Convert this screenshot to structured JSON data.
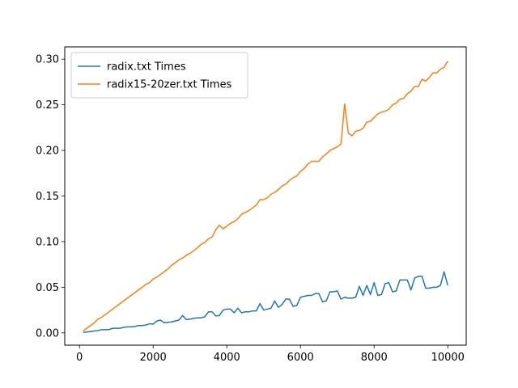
{
  "chart_data": {
    "type": "line",
    "title": "",
    "xlabel": "",
    "ylabel": "",
    "xlim": [
      -400,
      10500
    ],
    "ylim": [
      -0.0135,
      0.3135
    ],
    "xticks": [
      0,
      2000,
      4000,
      6000,
      8000,
      10000
    ],
    "xtick_labels": [
      "0",
      "2000",
      "4000",
      "6000",
      "8000",
      "10000"
    ],
    "yticks": [
      0.0,
      0.05,
      0.1,
      0.15,
      0.2,
      0.25,
      0.3
    ],
    "ytick_labels": [
      "0.00",
      "0.05",
      "0.10",
      "0.15",
      "0.20",
      "0.25",
      "0.30"
    ],
    "grid": false,
    "legend_placement": "upper-left",
    "series": [
      {
        "name": "radix.txt Times",
        "color": "#1f77b4",
        "x": [
          100,
          200,
          300,
          400,
          500,
          600,
          700,
          800,
          900,
          1000,
          1100,
          1200,
          1300,
          1400,
          1500,
          1600,
          1700,
          1800,
          1900,
          2000,
          2100,
          2200,
          2300,
          2400,
          2500,
          2600,
          2700,
          2800,
          2900,
          3000,
          3100,
          3200,
          3300,
          3400,
          3500,
          3600,
          3700,
          3800,
          3900,
          4000,
          4100,
          4200,
          4300,
          4400,
          4500,
          4600,
          4700,
          4800,
          4900,
          5000,
          5100,
          5200,
          5300,
          5400,
          5500,
          5600,
          5700,
          5800,
          5900,
          6000,
          6100,
          6200,
          6300,
          6400,
          6500,
          6600,
          6700,
          6800,
          6900,
          7000,
          7100,
          7200,
          7300,
          7400,
          7500,
          7600,
          7700,
          7800,
          7900,
          8000,
          8100,
          8200,
          8300,
          8400,
          8500,
          8600,
          8700,
          8800,
          8900,
          9000,
          9100,
          9200,
          9300,
          9400,
          9500,
          9600,
          9700,
          9800,
          9900,
          10000
        ],
        "y": [
          0.0005,
          0.001,
          0.0015,
          0.002,
          0.0025,
          0.0035,
          0.0035,
          0.0035,
          0.005,
          0.005,
          0.005,
          0.006,
          0.0065,
          0.0065,
          0.007,
          0.008,
          0.008,
          0.0085,
          0.01,
          0.0095,
          0.013,
          0.014,
          0.011,
          0.0115,
          0.012,
          0.013,
          0.014,
          0.019,
          0.0145,
          0.015,
          0.016,
          0.0165,
          0.0165,
          0.0175,
          0.023,
          0.023,
          0.0185,
          0.019,
          0.025,
          0.026,
          0.026,
          0.022,
          0.027,
          0.022,
          0.023,
          0.023,
          0.024,
          0.024,
          0.032,
          0.025,
          0.026,
          0.027,
          0.035,
          0.028,
          0.031,
          0.037,
          0.037,
          0.029,
          0.03,
          0.039,
          0.04,
          0.041,
          0.041,
          0.043,
          0.043,
          0.034,
          0.035,
          0.045,
          0.045,
          0.046,
          0.037,
          0.039,
          0.038,
          0.038,
          0.039,
          0.051,
          0.041,
          0.052,
          0.042,
          0.055,
          0.041,
          0.042,
          0.054,
          0.055,
          0.045,
          0.046,
          0.058,
          0.058,
          0.058,
          0.047,
          0.06,
          0.062,
          0.062,
          0.049,
          0.049,
          0.05,
          0.05,
          0.052,
          0.067,
          0.052
        ]
      },
      {
        "name": "radix15-20zer.txt Times",
        "color": "#ff7f0e",
        "x": [
          100,
          200,
          300,
          400,
          500,
          600,
          700,
          800,
          900,
          1000,
          1100,
          1200,
          1300,
          1400,
          1500,
          1600,
          1700,
          1800,
          1900,
          2000,
          2100,
          2200,
          2300,
          2400,
          2500,
          2600,
          2700,
          2800,
          2900,
          3000,
          3100,
          3200,
          3300,
          3400,
          3500,
          3600,
          3700,
          3800,
          3900,
          4000,
          4100,
          4200,
          4300,
          4400,
          4500,
          4600,
          4700,
          4800,
          4900,
          5000,
          5100,
          5200,
          5300,
          5400,
          5500,
          5600,
          5700,
          5800,
          5900,
          6000,
          6100,
          6200,
          6300,
          6400,
          6500,
          6600,
          6700,
          6800,
          6900,
          7000,
          7100,
          7200,
          7300,
          7400,
          7500,
          7600,
          7700,
          7800,
          7900,
          8000,
          8100,
          8200,
          8300,
          8400,
          8500,
          8600,
          8700,
          8800,
          8900,
          9000,
          9100,
          9200,
          9300,
          9400,
          9500,
          9600,
          9700,
          9800,
          9900,
          10000
        ],
        "y": [
          0.002,
          0.005,
          0.008,
          0.011,
          0.015,
          0.017,
          0.02,
          0.023,
          0.026,
          0.029,
          0.032,
          0.035,
          0.038,
          0.041,
          0.044,
          0.047,
          0.05,
          0.053,
          0.055,
          0.059,
          0.061,
          0.064,
          0.067,
          0.07,
          0.074,
          0.077,
          0.08,
          0.082,
          0.085,
          0.087,
          0.09,
          0.093,
          0.097,
          0.099,
          0.103,
          0.105,
          0.113,
          0.118,
          0.114,
          0.117,
          0.12,
          0.122,
          0.125,
          0.13,
          0.132,
          0.134,
          0.137,
          0.14,
          0.146,
          0.146,
          0.148,
          0.152,
          0.154,
          0.157,
          0.161,
          0.163,
          0.167,
          0.17,
          0.172,
          0.177,
          0.18,
          0.185,
          0.188,
          0.188,
          0.188,
          0.193,
          0.196,
          0.2,
          0.202,
          0.204,
          0.207,
          0.251,
          0.219,
          0.216,
          0.221,
          0.222,
          0.224,
          0.231,
          0.232,
          0.236,
          0.24,
          0.242,
          0.243,
          0.245,
          0.25,
          0.252,
          0.256,
          0.257,
          0.262,
          0.265,
          0.27,
          0.27,
          0.278,
          0.276,
          0.28,
          0.285,
          0.285,
          0.289,
          0.291,
          0.298
        ]
      }
    ]
  }
}
